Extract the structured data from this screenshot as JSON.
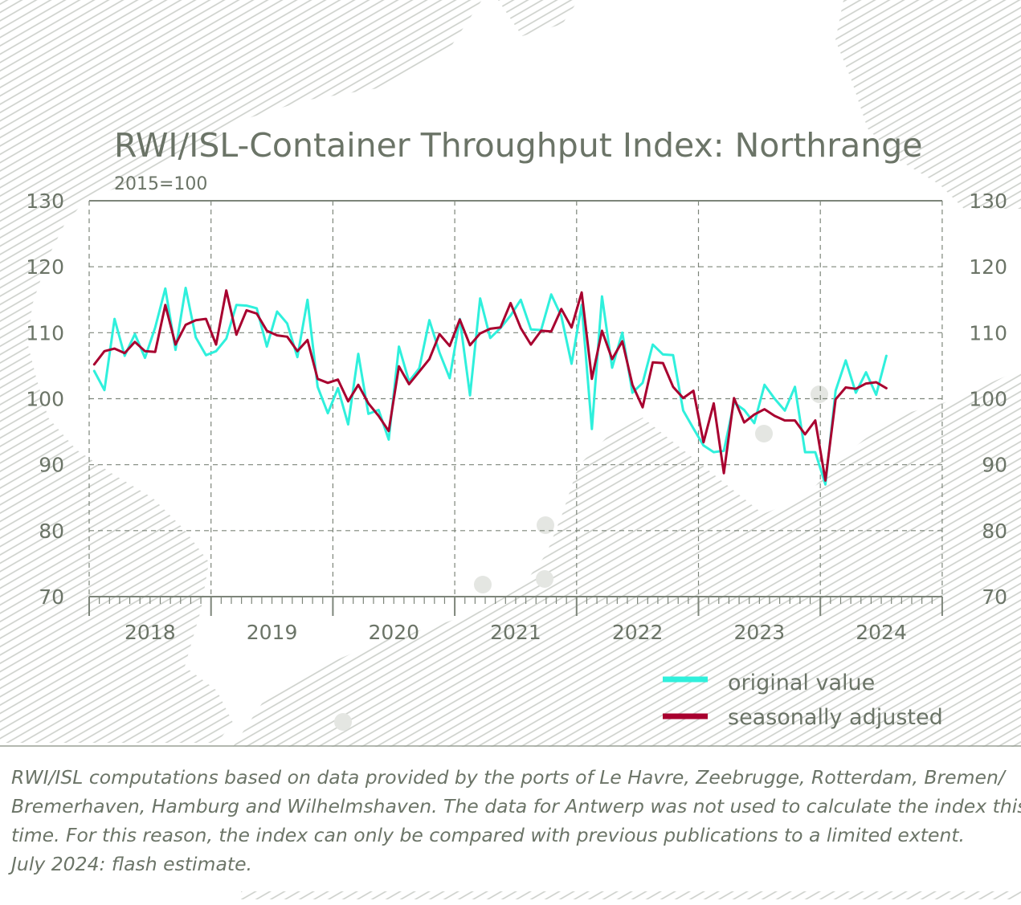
{
  "chart_data": {
    "type": "line",
    "title": "RWI/ISL-Container Throughput Index: Northrange",
    "subtitle": "2015=100",
    "ylim": [
      70,
      130
    ],
    "yticks": [
      70,
      80,
      90,
      100,
      110,
      120,
      130
    ],
    "ytick_labels": [
      "70",
      "80",
      "90",
      "100",
      "110",
      "120",
      "130"
    ],
    "year_labels": [
      "2018",
      "2019",
      "2020",
      "2021",
      "2022",
      "2023",
      "2024"
    ],
    "x_start": "2018-01",
    "grid": true,
    "legend_position": "bottom-right",
    "series": [
      {
        "name": "original value",
        "color": "#2ff0dc",
        "values": [
          104.2,
          101.3,
          112.1,
          106.5,
          109.8,
          106.2,
          110.8,
          116.7,
          107.4,
          116.8,
          109.3,
          106.6,
          107.2,
          109.1,
          114.2,
          114.1,
          113.7,
          107.9,
          113.2,
          111.4,
          106.3,
          115.0,
          101.8,
          97.8,
          101.6,
          96.1,
          106.8,
          97.7,
          98.3,
          93.8,
          107.9,
          102.6,
          104.6,
          111.9,
          107.0,
          103.1,
          112.1,
          100.5,
          115.2,
          109.2,
          110.7,
          112.6,
          115.0,
          110.5,
          110.4,
          115.8,
          112.5,
          105.3,
          114.2,
          95.4,
          115.5,
          104.7,
          110.0,
          100.9,
          102.4,
          108.2,
          106.7,
          106.6,
          98.2,
          95.5,
          92.9,
          91.9,
          92.1,
          99.4,
          98.3,
          96.3,
          102.1,
          100.0,
          98.2,
          101.8,
          91.9,
          91.9,
          87.0,
          101.2,
          105.8,
          100.9,
          104.0,
          100.6,
          106.5
        ]
      },
      {
        "name": "seasonally adjusted",
        "color": "#a8002f",
        "values": [
          105.2,
          107.2,
          107.6,
          106.9,
          108.6,
          107.2,
          107.1,
          114.2,
          108.2,
          111.2,
          111.9,
          112.1,
          108.2,
          116.4,
          109.7,
          113.4,
          112.9,
          110.3,
          109.6,
          109.4,
          107.2,
          108.9,
          103.0,
          102.4,
          102.9,
          99.6,
          102.1,
          99.3,
          97.4,
          95.1,
          104.9,
          102.2,
          104.1,
          106.0,
          109.8,
          108.0,
          112.0,
          108.1,
          109.9,
          110.6,
          110.8,
          114.5,
          110.7,
          108.2,
          110.3,
          110.2,
          113.6,
          110.8,
          116.1,
          103.0,
          110.3,
          106.0,
          108.7,
          102.1,
          98.7,
          105.5,
          105.4,
          101.8,
          100.1,
          101.2,
          93.4,
          99.3,
          88.7,
          100.1,
          96.4,
          97.6,
          98.4,
          97.4,
          96.7,
          96.7,
          94.6,
          96.7,
          87.6,
          99.9,
          101.7,
          101.5,
          102.3,
          102.5,
          101.6
        ]
      }
    ]
  },
  "footnote": {
    "lines": [
      "RWI/ISL computations based on data provided by the ports of Le Havre, Zeebrugge, Rotterdam, Bremen/",
      "Bremerhaven, Hamburg and Wilhelmshaven. The data for Antwerp was not used to calculate the index this",
      "time. For this reason, the index can only be compared with previous publications to a limited extent.",
      "July 2024: flash estimate."
    ]
  },
  "colors": {
    "text": "#6b7467",
    "hatch": "#c9cdc7",
    "grid": "#7d857a"
  }
}
